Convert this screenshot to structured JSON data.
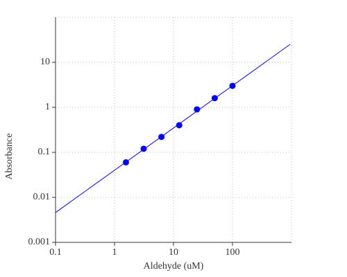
{
  "chart_data": {
    "type": "scatter",
    "log_x": true,
    "log_y": true,
    "grid": true,
    "x_label": "Aldehyde (uM)",
    "y_label": "Absorbance",
    "xlim": [
      0.1,
      1000
    ],
    "ylim": [
      0.001,
      100
    ],
    "xticks": [
      0.1,
      1,
      10,
      100
    ],
    "yticks": [
      0.001,
      0.01,
      0.1,
      1,
      10
    ],
    "series": [
      {
        "color": "#0000ff",
        "x": [
          1.5625,
          3.125,
          6.25,
          12.5,
          25,
          50,
          100
        ],
        "values": [
          0.06,
          0.12,
          0.22,
          0.4,
          0.9,
          1.6,
          3.0
        ]
      }
    ],
    "fit_line": {
      "color": "#0000ff",
      "x": [
        0.1,
        946
      ],
      "values": [
        0.0046,
        25
      ]
    }
  }
}
